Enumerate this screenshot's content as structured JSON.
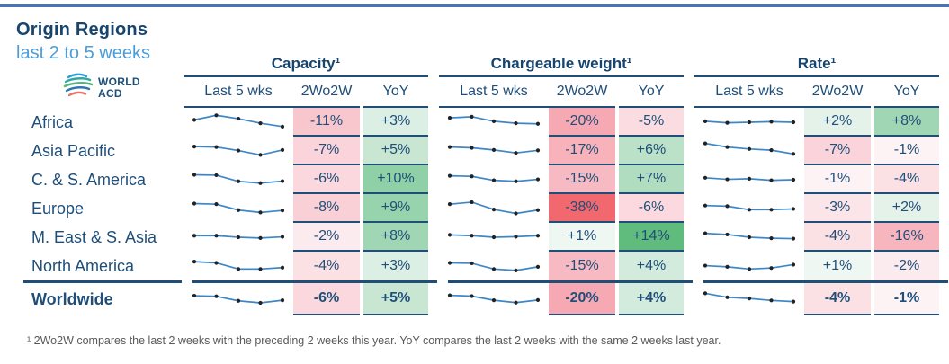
{
  "header": {
    "title": "Origin Regions",
    "subtitle": "last 2 to 5 weeks",
    "logo_line1": "WORLD",
    "logo_line2": "ACD"
  },
  "footnote": {
    "text": "¹ 2Wo2W compares the last 2 weeks with the preceding 2 weeks this year. YoY compares the last 2 weeks with the same 2 weeks last year."
  },
  "colors": {
    "navy_text": "#1F4E79",
    "title_navy": "#17456E",
    "subtitle_blue": "#4B9CD7",
    "top_rule_blue": "#4A72B8",
    "sparkline_blue": "#3E87C6",
    "sparkline_dot": "#222222",
    "footnote_gray": "#595959",
    "strong_red": "#F2686F",
    "strong_green": "#5FBC7D"
  },
  "chart_data": {
    "type": "table",
    "title": "Origin Regions",
    "subtitle": "last 2 to 5 weeks",
    "groups": [
      "Capacity¹",
      "Chargeable weight¹",
      "Rate¹"
    ],
    "columns": [
      "Last 5 wks",
      "2Wo2W",
      "YoY"
    ],
    "sparkline_meta": "5 weekly points per sparkline, values normalized 0-1 as read from pixels",
    "rows": [
      {
        "region": "Africa",
        "bold": false,
        "metrics": {
          "capacity": {
            "spark": [
              0.62,
              0.85,
              0.68,
              0.45,
              0.28
            ],
            "wow": "-11%",
            "wow_bg": "#F8C7CE",
            "yoy": "+3%",
            "yoy_bg": "#DCEFE4"
          },
          "chargeable_weight": {
            "spark": [
              0.72,
              0.78,
              0.55,
              0.45,
              0.42
            ],
            "wow": "-20%",
            "wow_bg": "#F6A9B2",
            "yoy": "-5%",
            "yoy_bg": "#FBDCE1"
          },
          "rate": {
            "spark": [
              0.55,
              0.47,
              0.5,
              0.53,
              0.5
            ],
            "wow": "+2%",
            "wow_bg": "#E4F2EA",
            "yoy": "+8%",
            "yoy_bg": "#A0D6B3"
          }
        }
      },
      {
        "region": "Asia Pacific",
        "bold": false,
        "metrics": {
          "capacity": {
            "spark": [
              0.72,
              0.7,
              0.52,
              0.3,
              0.55
            ],
            "wow": "-7%",
            "wow_bg": "#FAD4DA",
            "yoy": "+5%",
            "yoy_bg": "#C9E6D3"
          },
          "chargeable_weight": {
            "spark": [
              0.7,
              0.66,
              0.55,
              0.4,
              0.53
            ],
            "wow": "-17%",
            "wow_bg": "#F7B2BA",
            "yoy": "+6%",
            "yoy_bg": "#BCE1C9"
          },
          "rate": {
            "spark": [
              0.88,
              0.7,
              0.6,
              0.54,
              0.35
            ],
            "wow": "-7%",
            "wow_bg": "#FAD4DA",
            "yoy": "-1%",
            "yoy_bg": "#FDF2F4"
          }
        }
      },
      {
        "region": "C. & S. America",
        "bold": false,
        "metrics": {
          "capacity": {
            "spark": [
              0.75,
              0.73,
              0.42,
              0.33,
              0.43
            ],
            "wow": "-6%",
            "wow_bg": "#FAD8DD",
            "yoy": "+10%",
            "yoy_bg": "#8FD0A6"
          },
          "chargeable_weight": {
            "spark": [
              0.7,
              0.67,
              0.47,
              0.42,
              0.52
            ],
            "wow": "-15%",
            "wow_bg": "#F7BAC2",
            "yoy": "+7%",
            "yoy_bg": "#B0DCC0"
          },
          "rate": {
            "spark": [
              0.6,
              0.52,
              0.55,
              0.47,
              0.5
            ],
            "wow": "-1%",
            "wow_bg": "#FDF2F4",
            "yoy": "-4%",
            "yoy_bg": "#FBE0E4"
          }
        }
      },
      {
        "region": "Europe",
        "bold": false,
        "metrics": {
          "capacity": {
            "spark": [
              0.75,
              0.72,
              0.42,
              0.3,
              0.4
            ],
            "wow": "-8%",
            "wow_bg": "#F9D0D6",
            "yoy": "+9%",
            "yoy_bg": "#97D3AC"
          },
          "chargeable_weight": {
            "spark": [
              0.72,
              0.82,
              0.45,
              0.25,
              0.42
            ],
            "wow": "-38%",
            "wow_bg": "#F2686F",
            "yoy": "-6%",
            "yoy_bg": "#FBD9DF"
          },
          "rate": {
            "spark": [
              0.65,
              0.62,
              0.44,
              0.44,
              0.48
            ],
            "wow": "-3%",
            "wow_bg": "#FCE5E9",
            "yoy": "+2%",
            "yoy_bg": "#E4F2EA"
          }
        }
      },
      {
        "region": "M. East & S. Asia",
        "bold": false,
        "metrics": {
          "capacity": {
            "spark": [
              0.58,
              0.58,
              0.5,
              0.46,
              0.52
            ],
            "wow": "-2%",
            "wow_bg": "#FCEBEE",
            "yoy": "+8%",
            "yoy_bg": "#A0D6B3"
          },
          "chargeable_weight": {
            "spark": [
              0.62,
              0.58,
              0.5,
              0.53,
              0.58
            ],
            "wow": "+1%",
            "wow_bg": "#EFF7F2",
            "yoy": "+14%",
            "yoy_bg": "#5FBC7D"
          },
          "rate": {
            "spark": [
              0.7,
              0.64,
              0.5,
              0.45,
              0.43
            ],
            "wow": "-4%",
            "wow_bg": "#FBE0E4",
            "yoy": "-16%",
            "yoy_bg": "#F7B6BE"
          }
        }
      },
      {
        "region": "North America",
        "bold": false,
        "metrics": {
          "capacity": {
            "spark": [
              0.72,
              0.66,
              0.35,
              0.35,
              0.42
            ],
            "wow": "-4%",
            "wow_bg": "#FBE0E4",
            "yoy": "+3%",
            "yoy_bg": "#DCEFE4"
          },
          "chargeable_weight": {
            "spark": [
              0.66,
              0.64,
              0.35,
              0.28,
              0.46
            ],
            "wow": "-15%",
            "wow_bg": "#F7BAC2",
            "yoy": "+4%",
            "yoy_bg": "#D2EBDC"
          },
          "rate": {
            "spark": [
              0.52,
              0.46,
              0.35,
              0.4,
              0.57
            ],
            "wow": "+1%",
            "wow_bg": "#EFF7F2",
            "yoy": "-2%",
            "yoy_bg": "#FCEBEE"
          }
        }
      },
      {
        "region": "Worldwide",
        "bold": true,
        "metrics": {
          "capacity": {
            "spark": [
              0.68,
              0.65,
              0.42,
              0.32,
              0.45
            ],
            "wow": "-6%",
            "wow_bg": "#FAD8DD",
            "yoy": "+5%",
            "yoy_bg": "#C9E6D3"
          },
          "chargeable_weight": {
            "spark": [
              0.7,
              0.66,
              0.45,
              0.33,
              0.46
            ],
            "wow": "-20%",
            "wow_bg": "#F6A9B2",
            "yoy": "+4%",
            "yoy_bg": "#D2EBDC"
          },
          "rate": {
            "spark": [
              0.8,
              0.6,
              0.54,
              0.44,
              0.38
            ],
            "wow": "-4%",
            "wow_bg": "#FBE0E4",
            "yoy": "-1%",
            "yoy_bg": "#FDF2F4"
          }
        }
      }
    ]
  }
}
